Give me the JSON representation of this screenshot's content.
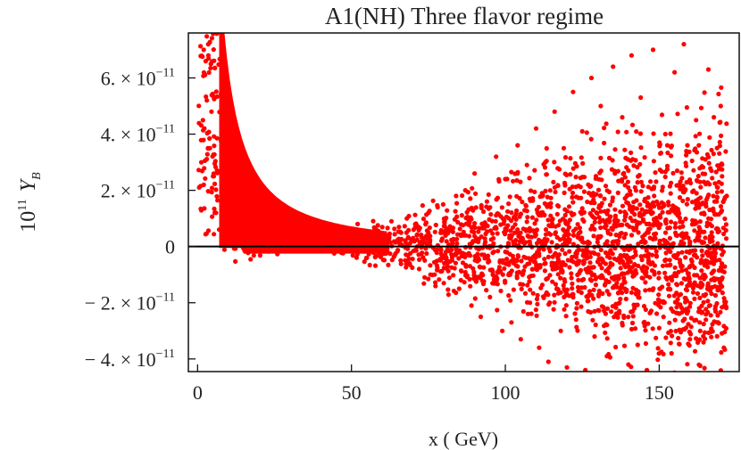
{
  "chart_data": {
    "type": "scatter",
    "title": "A1(NH) Three flavor regime",
    "xlabel": "x ( GeV)",
    "ylabel": "10^11 Y_B",
    "ylabel_parts": {
      "prefix": "10",
      "prefix_sup": "11",
      "symbol": "Y",
      "symbol_sub": "B"
    },
    "xlim": [
      -3,
      176
    ],
    "ylim": [
      -4.45e-11,
      7.6e-11
    ],
    "x_ticks": [
      {
        "value": 0,
        "label": "0"
      },
      {
        "value": 50,
        "label": "50"
      },
      {
        "value": 100,
        "label": "100"
      },
      {
        "value": 150,
        "label": "150"
      }
    ],
    "y_ticks": [
      {
        "value": 6e-11,
        "mantissa": "6. × 10",
        "exp": "−11"
      },
      {
        "value": 4e-11,
        "mantissa": "4. × 10",
        "exp": "−11"
      },
      {
        "value": 2e-11,
        "mantissa": "2. × 10",
        "exp": "−11"
      },
      {
        "value": 0,
        "mantissa": "0",
        "exp": ""
      },
      {
        "value": -2e-11,
        "mantissa": "− 2. × 10",
        "exp": "−11"
      },
      {
        "value": -4e-11,
        "mantissa": "− 4. × 10",
        "exp": "−11"
      }
    ],
    "zero_line": true,
    "grid": false,
    "series": [
      {
        "color": "#ff0000",
        "marker": "dot",
        "regions": [
          {
            "kind": "dense_band",
            "x_range": [
              3,
              60
            ],
            "y_upper": "~1.5e-10 / x^1.3, clipped at top",
            "y_lower": "~ -0.3e-11"
          },
          {
            "kind": "scattered_cloud",
            "x_range": [
              40,
              172
            ],
            "y_range": [
              -4.45e-11,
              7.2e-11
            ],
            "spread": "widens with x"
          },
          {
            "kind": "sparse_column",
            "x_range": [
              0,
              8
            ],
            "y_range": [
              5e-12,
              7.5e-11
            ]
          }
        ],
        "points": [
          [
            0.5,
            2.1e-11
          ],
          [
            1.2,
            3e-11
          ],
          [
            2.0,
            7e-11
          ],
          [
            3.0,
            5.2e-11
          ],
          [
            3.5,
            6.8e-11
          ],
          [
            4.0,
            3.5e-11
          ],
          [
            4.5,
            4.8e-11
          ],
          [
            5.0,
            2.5e-11
          ],
          [
            6.0,
            1.2e-11
          ],
          [
            7.0,
            6e-12
          ],
          [
            52,
            8e-12
          ],
          [
            55,
            -4e-12
          ],
          [
            58,
            6e-12
          ],
          [
            60,
            -2e-12
          ],
          [
            63,
            9e-12
          ],
          [
            66,
            -5e-12
          ],
          [
            68,
            1e-11
          ],
          [
            70,
            3e-12
          ],
          [
            72,
            -8e-12
          ],
          [
            75,
            1.2e-11
          ],
          [
            77,
            -1e-11
          ],
          [
            78,
            1.4e-11
          ],
          [
            80,
            -1.3e-11
          ],
          [
            82,
            7e-12
          ],
          [
            84,
            1.8e-11
          ],
          [
            85,
            -1.5e-11
          ],
          [
            87,
            2e-11
          ],
          [
            89,
            -2.1e-11
          ],
          [
            90,
            2.6e-11
          ],
          [
            92,
            -2.5e-11
          ],
          [
            94,
            1.6e-11
          ],
          [
            95,
            -1.8e-11
          ],
          [
            97,
            3.2e-11
          ],
          [
            99,
            -3e-11
          ],
          [
            100,
            2.4e-11
          ],
          [
            102,
            -2.7e-11
          ],
          [
            104,
            3.6e-11
          ],
          [
            105,
            -3.3e-11
          ],
          [
            107,
            2.9e-11
          ],
          [
            108,
            -2e-11
          ],
          [
            110,
            4.2e-11
          ],
          [
            111,
            -3.6e-11
          ],
          [
            113,
            3e-11
          ],
          [
            114,
            -4.1e-11
          ],
          [
            116,
            4.8e-11
          ],
          [
            118,
            -3e-11
          ],
          [
            119,
            3.5e-11
          ],
          [
            120,
            -4.3e-11
          ],
          [
            122,
            5.5e-11
          ],
          [
            123,
            -2.6e-11
          ],
          [
            125,
            4.1e-11
          ],
          [
            126,
            -4.4e-11
          ],
          [
            128,
            6e-11
          ],
          [
            129,
            -3.2e-11
          ],
          [
            131,
            5e-11
          ],
          [
            133,
            -3.9e-11
          ],
          [
            135,
            6.4e-11
          ],
          [
            136,
            -2.4e-11
          ],
          [
            138,
            4.6e-11
          ],
          [
            140,
            -4.2e-11
          ],
          [
            141,
            6.8e-11
          ],
          [
            143,
            -3.5e-11
          ],
          [
            144,
            5.3e-11
          ],
          [
            146,
            -4.4e-11
          ],
          [
            148,
            7e-11
          ],
          [
            150,
            -2.9e-11
          ],
          [
            152,
            4e-11
          ],
          [
            154,
            -3.8e-11
          ],
          [
            155,
            6.2e-11
          ],
          [
            157,
            -1.7e-11
          ],
          [
            158,
            7.2e-11
          ],
          [
            160,
            -3.3e-11
          ],
          [
            162,
            4.5e-11
          ],
          [
            163,
            -2.2e-11
          ],
          [
            165,
            3.1e-11
          ],
          [
            166,
            6.3e-11
          ],
          [
            168,
            -1.2e-11
          ],
          [
            169,
            2.1e-11
          ],
          [
            170,
            5e-11
          ],
          [
            171,
            -3.6e-11
          ]
        ]
      }
    ]
  }
}
